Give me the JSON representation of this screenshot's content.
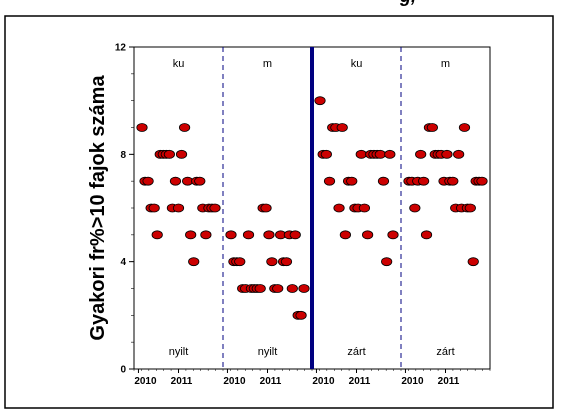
{
  "title_fragment": "g, ",
  "chart_data": {
    "type": "scatter",
    "ylabel": "Gyakori fr%>10 fajok száma",
    "ylim": [
      0,
      12
    ],
    "yticks": [
      "0",
      "4",
      "8",
      "12"
    ],
    "marker_color": "#cc0000",
    "divider_color": "#000080",
    "top_labels": [
      "ku",
      "m",
      "ku",
      "m"
    ],
    "bottom_labels": [
      "nyílt",
      "nyílt",
      "zárt",
      "zárt"
    ],
    "bottom_labels_display": [
      "nyilt",
      "nyilt",
      "zárt",
      "zárt"
    ],
    "x_tick_labels": [
      "2010",
      "2011",
      "2010",
      "2011",
      "2010",
      "2011",
      "2010",
      "2011"
    ],
    "panels": [
      {
        "name": "ku nyilt",
        "values": [
          9,
          7,
          7,
          6,
          6,
          5,
          8,
          8,
          8,
          8,
          6,
          7,
          6,
          8,
          9,
          7,
          5,
          4,
          7,
          7,
          6,
          5,
          6,
          6,
          6
        ]
      },
      {
        "name": "m nyilt",
        "values": [
          5,
          4,
          4,
          4,
          3,
          3,
          5,
          3,
          3,
          3,
          3,
          6,
          6,
          5,
          4,
          3,
          3,
          5,
          4,
          4,
          5,
          3,
          5,
          2,
          2,
          3
        ]
      },
      {
        "name": "ku zárt",
        "values": [
          10,
          8,
          8,
          7,
          9,
          9,
          6,
          9,
          5,
          7,
          7,
          6,
          6,
          8,
          6,
          5,
          8,
          8,
          8,
          8,
          7,
          4,
          8,
          5
        ]
      },
      {
        "name": "m zárt",
        "values": [
          7,
          7,
          6,
          7,
          8,
          7,
          5,
          9,
          9,
          8,
          8,
          8,
          7,
          8,
          7,
          7,
          6,
          8,
          6,
          9,
          6,
          6,
          4,
          7,
          7,
          7
        ]
      }
    ]
  }
}
